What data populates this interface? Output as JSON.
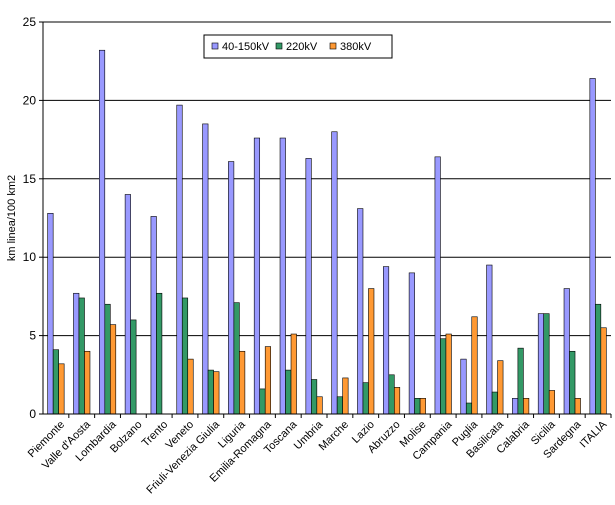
{
  "chart_data": {
    "type": "bar",
    "title": "",
    "xlabel": "",
    "ylabel": "km linea/100 km2",
    "ylim": [
      0,
      25
    ],
    "yticks": [
      "0",
      "5",
      "10",
      "15",
      "20",
      "25"
    ],
    "grid": true,
    "legend_position": "top-center",
    "categories": [
      "Piemonte",
      "Valle d'Aosta",
      "Lombardia",
      "Bolzano",
      "Trento",
      "Veneto",
      "Friuli-Venezia Giulia",
      "Liguria",
      "Emilia-Romagna",
      "Toscana",
      "Umbria",
      "Marche",
      "Lazio",
      "Abruzzo",
      "Molise",
      "Campania",
      "Puglia",
      "Basilicata",
      "Calabria",
      "Sicilia",
      "Sardegna",
      "ITALIA"
    ],
    "series": [
      {
        "name": "40-150kV",
        "color": "#9999ff",
        "values": [
          12.8,
          7.7,
          23.2,
          14.0,
          12.6,
          19.7,
          18.5,
          16.1,
          17.6,
          17.6,
          16.3,
          18.0,
          13.1,
          9.4,
          9.0,
          16.4,
          3.5,
          9.5,
          1.0,
          6.4,
          8.0,
          21.4
        ]
      },
      {
        "name": "220kV",
        "color": "#339966",
        "values": [
          4.1,
          7.4,
          7.0,
          6.0,
          7.7,
          7.4,
          2.8,
          7.1,
          1.6,
          2.8,
          2.2,
          1.1,
          2.0,
          2.5,
          1.0,
          4.8,
          0.7,
          1.4,
          4.2,
          6.4,
          4.0,
          7.0
        ]
      },
      {
        "name": "380kV",
        "color": "#ff9933",
        "values": [
          3.2,
          4.0,
          5.7,
          0,
          0,
          3.5,
          2.7,
          4.0,
          4.3,
          5.1,
          1.1,
          2.3,
          8.0,
          1.7,
          1.0,
          5.1,
          6.2,
          3.4,
          1.0,
          1.5,
          1.0,
          5.5
        ]
      }
    ]
  }
}
